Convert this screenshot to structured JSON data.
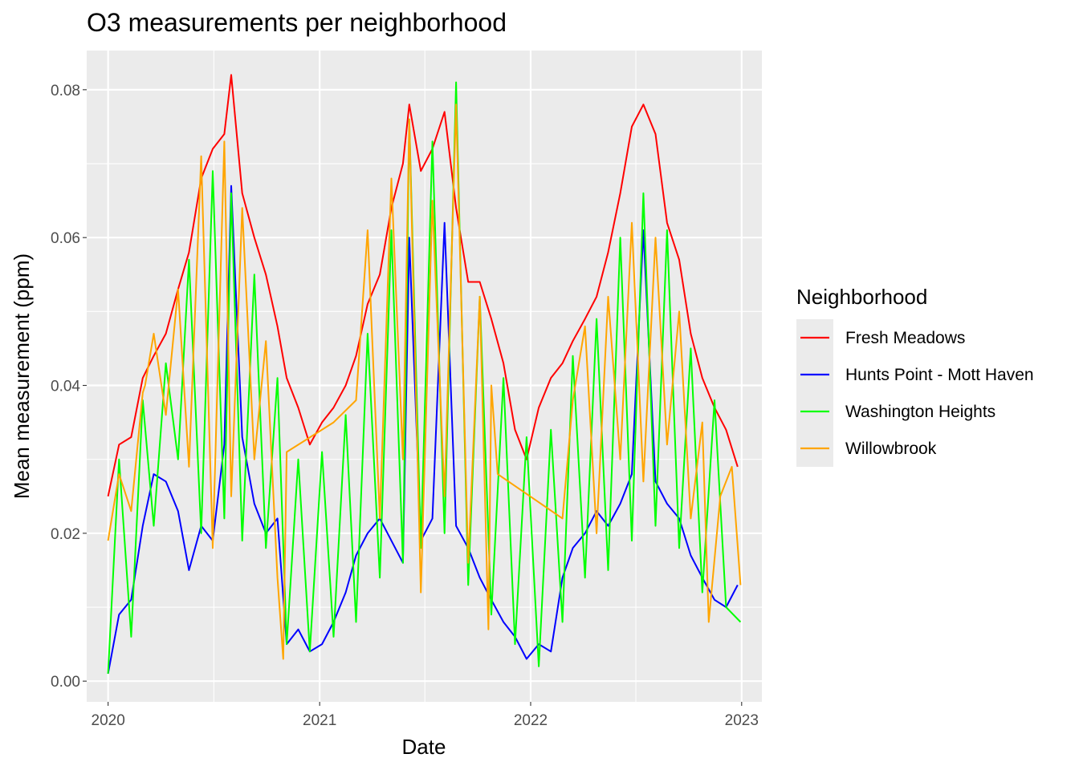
{
  "chart_data": {
    "type": "line",
    "title": "O3 measurements per neighborhood",
    "xlabel": "Date",
    "ylabel": "Mean measurement (ppm)",
    "x_ticks": [
      "2020",
      "2021",
      "2022",
      "2023"
    ],
    "y_ticks": [
      "0.00",
      "0.02",
      "0.04",
      "0.06",
      "0.08"
    ],
    "xlim": [
      "2019-11-25",
      "2023-02-05"
    ],
    "ylim": [
      -0.0028,
      0.0853
    ],
    "grid": true,
    "legend": {
      "title": "Neighborhood",
      "position": "right"
    },
    "series": [
      {
        "name": "Fresh Meadows",
        "color": "#ff0000",
        "points": [
          [
            "2020-01-01",
            0.025
          ],
          [
            "2020-01-20",
            0.032
          ],
          [
            "2020-02-10",
            0.033
          ],
          [
            "2020-03-01",
            0.041
          ],
          [
            "2020-03-20",
            0.044
          ],
          [
            "2020-04-10",
            0.047
          ],
          [
            "2020-05-01",
            0.053
          ],
          [
            "2020-05-20",
            0.058
          ],
          [
            "2020-06-10",
            0.068
          ],
          [
            "2020-06-30",
            0.072
          ],
          [
            "2020-07-20",
            0.074
          ],
          [
            "2020-08-01",
            0.082
          ],
          [
            "2020-08-20",
            0.066
          ],
          [
            "2020-09-10",
            0.06
          ],
          [
            "2020-09-30",
            0.055
          ],
          [
            "2020-10-20",
            0.048
          ],
          [
            "2020-11-05",
            0.041
          ],
          [
            "2020-11-25",
            0.037
          ],
          [
            "2020-12-15",
            0.032
          ],
          [
            "2021-01-05",
            0.035
          ],
          [
            "2021-01-25",
            0.037
          ],
          [
            "2021-02-15",
            0.04
          ],
          [
            "2021-03-05",
            0.044
          ],
          [
            "2021-03-25",
            0.051
          ],
          [
            "2021-04-15",
            0.055
          ],
          [
            "2021-05-05",
            0.064
          ],
          [
            "2021-05-25",
            0.07
          ],
          [
            "2021-06-05",
            0.078
          ],
          [
            "2021-06-25",
            0.069
          ],
          [
            "2021-07-15",
            0.072
          ],
          [
            "2021-08-05",
            0.077
          ],
          [
            "2021-08-25",
            0.064
          ],
          [
            "2021-09-15",
            0.054
          ],
          [
            "2021-10-05",
            0.054
          ],
          [
            "2021-10-25",
            0.049
          ],
          [
            "2021-11-15",
            0.043
          ],
          [
            "2021-12-05",
            0.034
          ],
          [
            "2021-12-25",
            0.03
          ],
          [
            "2022-01-15",
            0.037
          ],
          [
            "2022-02-05",
            0.041
          ],
          [
            "2022-02-25",
            0.043
          ],
          [
            "2022-03-15",
            0.046
          ],
          [
            "2022-04-05",
            0.049
          ],
          [
            "2022-04-25",
            0.052
          ],
          [
            "2022-05-15",
            0.058
          ],
          [
            "2022-06-05",
            0.066
          ],
          [
            "2022-06-25",
            0.075
          ],
          [
            "2022-07-15",
            0.078
          ],
          [
            "2022-08-05",
            0.074
          ],
          [
            "2022-08-25",
            0.062
          ],
          [
            "2022-09-15",
            0.057
          ],
          [
            "2022-10-05",
            0.047
          ],
          [
            "2022-10-25",
            0.041
          ],
          [
            "2022-11-15",
            0.037
          ],
          [
            "2022-12-05",
            0.034
          ],
          [
            "2022-12-25",
            0.029
          ]
        ]
      },
      {
        "name": "Hunts Point - Mott Haven",
        "color": "#0000ff",
        "points": [
          [
            "2020-01-01",
            0.001
          ],
          [
            "2020-01-20",
            0.009
          ],
          [
            "2020-02-10",
            0.011
          ],
          [
            "2020-03-01",
            0.021
          ],
          [
            "2020-03-20",
            0.028
          ],
          [
            "2020-04-10",
            0.027
          ],
          [
            "2020-05-01",
            0.023
          ],
          [
            "2020-05-20",
            0.015
          ],
          [
            "2020-06-10",
            0.021
          ],
          [
            "2020-06-30",
            0.019
          ],
          [
            "2020-07-20",
            0.032
          ],
          [
            "2020-08-01",
            0.067
          ],
          [
            "2020-08-20",
            0.033
          ],
          [
            "2020-09-10",
            0.024
          ],
          [
            "2020-09-30",
            0.02
          ],
          [
            "2020-10-20",
            0.022
          ],
          [
            "2020-11-05",
            0.005
          ],
          [
            "2020-11-25",
            0.007
          ],
          [
            "2020-12-15",
            0.004
          ],
          [
            "2021-01-05",
            0.005
          ],
          [
            "2021-01-25",
            0.008
          ],
          [
            "2021-02-15",
            0.012
          ],
          [
            "2021-03-05",
            0.017
          ],
          [
            "2021-03-25",
            0.02
          ],
          [
            "2021-04-15",
            0.022
          ],
          [
            "2021-05-05",
            0.019
          ],
          [
            "2021-05-25",
            0.016
          ],
          [
            "2021-06-05",
            0.06
          ],
          [
            "2021-06-25",
            0.019
          ],
          [
            "2021-07-15",
            0.022
          ],
          [
            "2021-08-05",
            0.062
          ],
          [
            "2021-08-25",
            0.021
          ],
          [
            "2021-09-15",
            0.018
          ],
          [
            "2021-10-05",
            0.014
          ],
          [
            "2021-10-25",
            0.011
          ],
          [
            "2021-11-15",
            0.008
          ],
          [
            "2021-12-05",
            0.006
          ],
          [
            "2021-12-25",
            0.003
          ],
          [
            "2022-01-15",
            0.005
          ],
          [
            "2022-02-05",
            0.004
          ],
          [
            "2022-02-25",
            0.014
          ],
          [
            "2022-03-15",
            0.018
          ],
          [
            "2022-04-05",
            0.02
          ],
          [
            "2022-04-25",
            0.023
          ],
          [
            "2022-05-15",
            0.021
          ],
          [
            "2022-06-05",
            0.024
          ],
          [
            "2022-06-25",
            0.028
          ],
          [
            "2022-07-15",
            0.061
          ],
          [
            "2022-08-05",
            0.027
          ],
          [
            "2022-08-25",
            0.024
          ],
          [
            "2022-09-15",
            0.022
          ],
          [
            "2022-10-05",
            0.017
          ],
          [
            "2022-10-25",
            0.014
          ],
          [
            "2022-11-15",
            0.011
          ],
          [
            "2022-12-05",
            0.01
          ],
          [
            "2022-12-25",
            0.013
          ]
        ]
      },
      {
        "name": "Washington Heights",
        "color": "#00ff00",
        "points": [
          [
            "2020-01-01",
            0.001
          ],
          [
            "2020-01-20",
            0.03
          ],
          [
            "2020-02-10",
            0.006
          ],
          [
            "2020-03-01",
            0.038
          ],
          [
            "2020-03-20",
            0.021
          ],
          [
            "2020-04-10",
            0.043
          ],
          [
            "2020-05-01",
            0.03
          ],
          [
            "2020-05-20",
            0.057
          ],
          [
            "2020-06-10",
            0.02
          ],
          [
            "2020-06-30",
            0.069
          ],
          [
            "2020-07-20",
            0.022
          ],
          [
            "2020-08-01",
            0.066
          ],
          [
            "2020-08-20",
            0.019
          ],
          [
            "2020-09-10",
            0.055
          ],
          [
            "2020-09-30",
            0.018
          ],
          [
            "2020-10-20",
            0.041
          ],
          [
            "2020-11-05",
            0.005
          ],
          [
            "2020-11-25",
            0.03
          ],
          [
            "2020-12-15",
            0.004
          ],
          [
            "2021-01-05",
            0.031
          ],
          [
            "2021-01-25",
            0.006
          ],
          [
            "2021-02-15",
            0.036
          ],
          [
            "2021-03-05",
            0.008
          ],
          [
            "2021-03-25",
            0.047
          ],
          [
            "2021-04-15",
            0.014
          ],
          [
            "2021-05-05",
            0.061
          ],
          [
            "2021-05-25",
            0.016
          ],
          [
            "2021-06-05",
            0.076
          ],
          [
            "2021-06-25",
            0.018
          ],
          [
            "2021-07-15",
            0.073
          ],
          [
            "2021-08-05",
            0.02
          ],
          [
            "2021-08-25",
            0.081
          ],
          [
            "2021-09-15",
            0.013
          ],
          [
            "2021-10-05",
            0.052
          ],
          [
            "2021-10-25",
            0.009
          ],
          [
            "2021-11-15",
            0.041
          ],
          [
            "2021-12-05",
            0.005
          ],
          [
            "2021-12-25",
            0.033
          ],
          [
            "2022-01-15",
            0.002
          ],
          [
            "2022-02-05",
            0.034
          ],
          [
            "2022-02-25",
            0.008
          ],
          [
            "2022-03-15",
            0.044
          ],
          [
            "2022-04-05",
            0.014
          ],
          [
            "2022-04-25",
            0.049
          ],
          [
            "2022-05-15",
            0.015
          ],
          [
            "2022-06-05",
            0.06
          ],
          [
            "2022-06-25",
            0.019
          ],
          [
            "2022-07-15",
            0.066
          ],
          [
            "2022-08-05",
            0.021
          ],
          [
            "2022-08-25",
            0.061
          ],
          [
            "2022-09-15",
            0.018
          ],
          [
            "2022-10-05",
            0.045
          ],
          [
            "2022-10-25",
            0.012
          ],
          [
            "2022-11-15",
            0.038
          ],
          [
            "2022-12-05",
            0.01
          ],
          [
            "2022-12-30",
            0.008
          ]
        ]
      },
      {
        "name": "Willowbrook",
        "color": "#ffa500",
        "points": [
          [
            "2020-01-01",
            0.019
          ],
          [
            "2020-01-20",
            0.028
          ],
          [
            "2020-02-10",
            0.023
          ],
          [
            "2020-03-01",
            0.039
          ],
          [
            "2020-03-05",
            0.04
          ],
          [
            "2020-03-20",
            0.047
          ],
          [
            "2020-04-10",
            0.036
          ],
          [
            "2020-05-01",
            0.053
          ],
          [
            "2020-05-20",
            0.029
          ],
          [
            "2020-06-10",
            0.071
          ],
          [
            "2020-06-30",
            0.018
          ],
          [
            "2020-07-20",
            0.073
          ],
          [
            "2020-08-01",
            0.025
          ],
          [
            "2020-08-20",
            0.064
          ],
          [
            "2020-09-10",
            0.03
          ],
          [
            "2020-09-30",
            0.046
          ],
          [
            "2020-10-20",
            0.014
          ],
          [
            "2020-10-30",
            0.003
          ],
          [
            "2020-11-05",
            0.031
          ],
          [
            "2021-01-25",
            0.035
          ],
          [
            "2021-03-05",
            0.038
          ],
          [
            "2021-03-25",
            0.061
          ],
          [
            "2021-04-15",
            0.022
          ],
          [
            "2021-05-05",
            0.068
          ],
          [
            "2021-05-25",
            0.03
          ],
          [
            "2021-06-05",
            0.076
          ],
          [
            "2021-06-25",
            0.012
          ],
          [
            "2021-07-15",
            0.065
          ],
          [
            "2021-08-05",
            0.025
          ],
          [
            "2021-08-25",
            0.078
          ],
          [
            "2021-09-15",
            0.016
          ],
          [
            "2021-10-05",
            0.052
          ],
          [
            "2021-10-20",
            0.007
          ],
          [
            "2021-10-25",
            0.04
          ],
          [
            "2021-11-05",
            0.028
          ],
          [
            "2022-02-25",
            0.022
          ],
          [
            "2022-03-15",
            0.038
          ],
          [
            "2022-04-05",
            0.048
          ],
          [
            "2022-04-25",
            0.02
          ],
          [
            "2022-05-15",
            0.052
          ],
          [
            "2022-06-05",
            0.03
          ],
          [
            "2022-06-25",
            0.062
          ],
          [
            "2022-07-15",
            0.027
          ],
          [
            "2022-08-05",
            0.06
          ],
          [
            "2022-08-25",
            0.032
          ],
          [
            "2022-09-15",
            0.05
          ],
          [
            "2022-10-05",
            0.022
          ],
          [
            "2022-10-25",
            0.035
          ],
          [
            "2022-11-05",
            0.008
          ],
          [
            "2022-11-25",
            0.025
          ],
          [
            "2022-12-15",
            0.029
          ],
          [
            "2022-12-30",
            0.013
          ]
        ]
      }
    ]
  }
}
